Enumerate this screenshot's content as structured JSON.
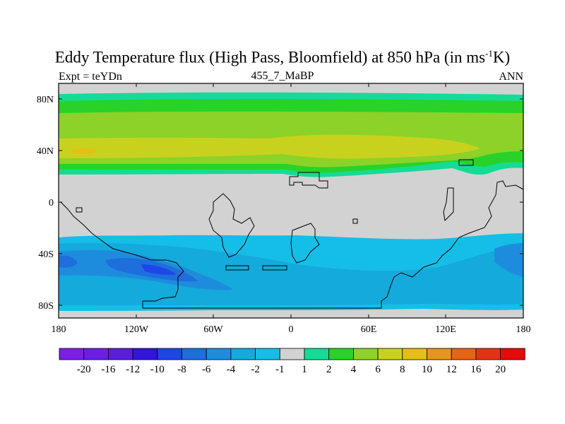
{
  "title": {
    "main": "Eddy Temperature flux (High Pass, Bloomfield) at 850 hPa (in ms",
    "sup": "-1",
    "tail": "K)"
  },
  "subtitle": {
    "left": "Expt = teYDn",
    "center": "455_7_MaBP",
    "right": "ANN"
  },
  "axes": {
    "x_ticks": [
      "180",
      "120W",
      "60W",
      "0",
      "60E",
      "120E",
      "180"
    ],
    "y_ticks": [
      "80N",
      "40N",
      "0",
      "40S",
      "80S"
    ]
  },
  "colorbar": {
    "labels": [
      "-20",
      "-16",
      "-12",
      "-10",
      "-8",
      "-6",
      "-4",
      "-2",
      "-1",
      "1",
      "2",
      "4",
      "6",
      "8",
      "10",
      "12",
      "16",
      "20"
    ],
    "colors": [
      "#7d1ee6",
      "#6c1ee6",
      "#5a1edc",
      "#3214dc",
      "#1e46e6",
      "#1e6edc",
      "#1e8cdc",
      "#14aadc",
      "#14bee6",
      "#d2d2d2",
      "#14dc96",
      "#28d228",
      "#8cd228",
      "#c8d21e",
      "#e6be14",
      "#e6961e",
      "#e66414",
      "#e63214",
      "#e60a0a"
    ]
  },
  "colors": {
    "land_no_data": "#d2d2d2",
    "frame": "#000000"
  }
}
